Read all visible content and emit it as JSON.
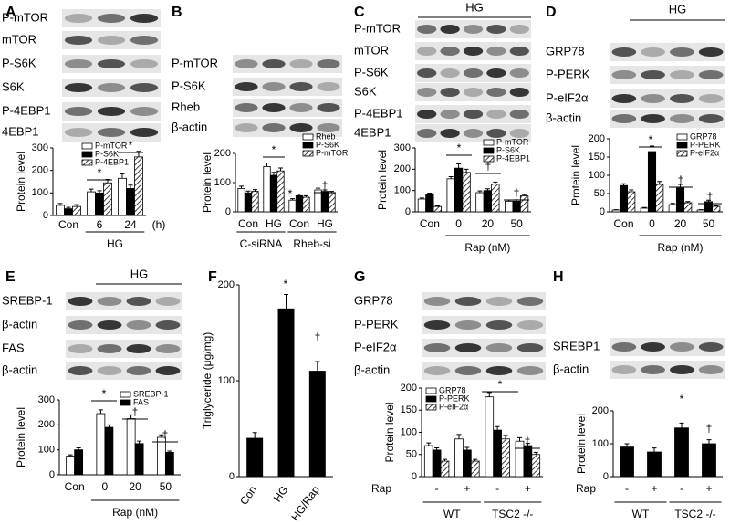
{
  "chart_data": [
    {
      "panel": "A",
      "type": "bar",
      "blots": [
        "P-mTOR",
        "mTOR",
        "P-S6K",
        "S6K",
        "P-4EBP1",
        "4EBP1"
      ],
      "ylabel": "Protein level",
      "categories": [
        "Con",
        "6",
        "24"
      ],
      "x_unit": "(h)",
      "groups": [
        "HG"
      ],
      "annotations": [
        "*",
        "*"
      ],
      "series": [
        {
          "name": "P-mTOR",
          "color": "#ffffff",
          "values": [
            45,
            105,
            165
          ],
          "errors": [
            8,
            12,
            20
          ]
        },
        {
          "name": "P-S6K",
          "color": "#000000",
          "values": [
            30,
            100,
            120
          ],
          "errors": [
            6,
            10,
            15
          ]
        },
        {
          "name": "P-4EBP1",
          "color": "#ffffff",
          "pattern": "hatch",
          "values": [
            40,
            145,
            260
          ],
          "errors": [
            8,
            15,
            25
          ]
        }
      ],
      "ylim": [
        0,
        300
      ],
      "yticks": [
        0,
        100,
        200,
        300
      ],
      "legend": "upper left"
    },
    {
      "panel": "B",
      "type": "bar",
      "blots": [
        "P-mTOR",
        "P-S6K",
        "Rheb",
        "β-actin"
      ],
      "ylabel": "Protein level",
      "categories": [
        "Con",
        "HG",
        "Con",
        "HG"
      ],
      "groups": [
        "C-siRNA",
        "Rheb-si"
      ],
      "annotations": [
        "*",
        "*",
        "†"
      ],
      "series": [
        {
          "name": "Rheb",
          "color": "#ffffff",
          "values": [
            80,
            155,
            40,
            75
          ],
          "errors": [
            8,
            12,
            5,
            6
          ]
        },
        {
          "name": "P-S6K",
          "color": "#000000",
          "values": [
            65,
            125,
            55,
            70
          ],
          "errors": [
            6,
            10,
            5,
            5
          ]
        },
        {
          "name": "P-mTOR",
          "color": "#ffffff",
          "pattern": "hatch",
          "values": [
            70,
            140,
            50,
            65
          ],
          "errors": [
            6,
            10,
            5,
            5
          ]
        }
      ],
      "ylim": [
        0,
        200
      ],
      "yticks": [
        0,
        100,
        200
      ],
      "legend": "upper right"
    },
    {
      "panel": "C",
      "type": "bar",
      "blot_header": "HG",
      "blots": [
        "P-mTOR",
        "mTOR",
        "P-S6K",
        "S6K",
        "P-4EBP1",
        "4EBP1"
      ],
      "ylabel": "Protein level",
      "categories": [
        "Con",
        "0",
        "20",
        "50"
      ],
      "groups": [
        "Rap (nM)"
      ],
      "annotations": [
        "*",
        "†",
        "†"
      ],
      "series": [
        {
          "name": "P-mTOR",
          "color": "#ffffff",
          "values": [
            60,
            155,
            90,
            50
          ],
          "errors": [
            5,
            10,
            8,
            5
          ]
        },
        {
          "name": "P-S6K",
          "color": "#000000",
          "values": [
            80,
            205,
            100,
            50
          ],
          "errors": [
            8,
            20,
            8,
            6
          ]
        },
        {
          "name": "P-4EBP1",
          "color": "#ffffff",
          "pattern": "hatch",
          "values": [
            25,
            185,
            130,
            75
          ],
          "errors": [
            3,
            15,
            10,
            6
          ]
        }
      ],
      "ylim": [
        0,
        300
      ],
      "yticks": [
        0,
        100,
        200,
        300
      ],
      "legend": "upper right"
    },
    {
      "panel": "D",
      "type": "bar",
      "blot_header": "HG",
      "blots": [
        "GRP78",
        "P-PERK",
        "P-eIF2α",
        "β-actin"
      ],
      "ylabel": "Protein level",
      "categories": [
        "Con",
        "0",
        "20",
        "50"
      ],
      "groups": [
        "Rap (nM)"
      ],
      "annotations": [
        "*",
        "†",
        "†"
      ],
      "series": [
        {
          "name": "GRP78",
          "color": "#ffffff",
          "values": [
            5,
            10,
            20,
            5
          ],
          "errors": [
            1,
            2,
            3,
            1
          ]
        },
        {
          "name": "P-PERK",
          "color": "#000000",
          "values": [
            72,
            165,
            65,
            28
          ],
          "errors": [
            5,
            15,
            10,
            4
          ]
        },
        {
          "name": "P-eIF2α",
          "color": "#ffffff",
          "pattern": "hatch",
          "values": [
            55,
            75,
            25,
            15
          ],
          "errors": [
            5,
            8,
            3,
            2
          ]
        }
      ],
      "ylim": [
        0,
        200
      ],
      "yticks": [
        0,
        50,
        100,
        150,
        200
      ],
      "legend": "upper right"
    },
    {
      "panel": "E",
      "type": "bar",
      "blot_header": "HG",
      "blots": [
        "SREBP-1",
        "β-actin",
        "FAS",
        "β-actin"
      ],
      "ylabel": "Protein level",
      "categories": [
        "Con",
        "0",
        "20",
        "50"
      ],
      "groups": [
        "Rap (nM)"
      ],
      "annotations": [
        "*",
        "†",
        "†"
      ],
      "series": [
        {
          "name": "SREBP-1",
          "color": "#ffffff",
          "values": [
            75,
            245,
            225,
            150
          ],
          "errors": [
            5,
            15,
            15,
            10
          ]
        },
        {
          "name": "FAS",
          "color": "#000000",
          "values": [
            100,
            190,
            125,
            90
          ],
          "errors": [
            8,
            10,
            10,
            5
          ]
        }
      ],
      "ylim": [
        0,
        300
      ],
      "yticks": [
        0,
        100,
        200,
        300
      ],
      "legend": "upper right"
    },
    {
      "panel": "F",
      "type": "bar",
      "ylabel": "Triglyceride (μg/mg)",
      "categories": [
        "Con",
        "HG",
        "HG/Rap"
      ],
      "annotations": [
        "*",
        "†"
      ],
      "values": [
        40,
        175,
        110
      ],
      "errors": [
        6,
        15,
        10
      ],
      "color": "#000000",
      "ylim": [
        0,
        200
      ],
      "yticks": [
        0,
        100,
        200
      ]
    },
    {
      "panel": "G",
      "type": "bar",
      "blots": [
        "GRP78",
        "P-PERK",
        "P-eIF2α",
        "β-actin"
      ],
      "ylabel": "Protein level",
      "row_label": "Rap",
      "categories": [
        "-",
        "+",
        "-",
        "+"
      ],
      "groups": [
        "WT",
        "TSC2 -/-"
      ],
      "annotations": [
        "*",
        "†"
      ],
      "series": [
        {
          "name": "GRP78",
          "color": "#ffffff",
          "values": [
            70,
            85,
            180,
            80
          ],
          "errors": [
            6,
            10,
            10,
            8
          ]
        },
        {
          "name": "P-PERK",
          "color": "#000000",
          "values": [
            60,
            60,
            105,
            70
          ],
          "errors": [
            5,
            6,
            8,
            5
          ]
        },
        {
          "name": "P-eIF2α",
          "color": "#ffffff",
          "pattern": "hatch",
          "values": [
            35,
            35,
            85,
            50
          ],
          "errors": [
            4,
            4,
            8,
            5
          ]
        }
      ],
      "ylim": [
        0,
        200
      ],
      "yticks": [
        0,
        50,
        100,
        150,
        200
      ],
      "legend": "upper left"
    },
    {
      "panel": "H",
      "type": "bar",
      "blots": [
        "SREBP1",
        "β-actin"
      ],
      "ylabel": "Protein level",
      "row_label": "Rap",
      "categories": [
        "-",
        "+",
        "-",
        "+"
      ],
      "groups": [
        "WT",
        "TSC2 -/-"
      ],
      "annotations": [
        "*",
        "†"
      ],
      "values": [
        90,
        75,
        148,
        100
      ],
      "errors": [
        10,
        12,
        15,
        12
      ],
      "color": "#000000",
      "ylim": [
        0,
        200
      ],
      "yticks": [
        0,
        100,
        200
      ]
    }
  ]
}
